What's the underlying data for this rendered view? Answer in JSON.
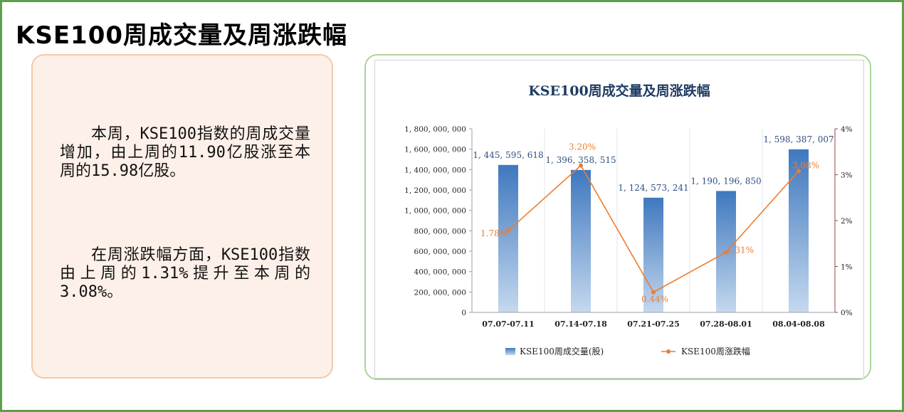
{
  "page": {
    "title": "KSE100周成交量及周涨跌幅"
  },
  "text_card": {
    "paragraph1": "本周，KSE100指数的周成交量增加，由上周的11.90亿股涨至本周的15.98亿股。",
    "paragraph2": "在周涨跌幅方面，KSE100指数由上周的1.31%提升至本周的3.08%。"
  },
  "colors": {
    "frame": "#5aa04a",
    "bar_top": "#3f78bf",
    "bar_bottom": "#c5d8ee",
    "line": "#ed7d31",
    "bar_label": "#2f4f7f",
    "right_axis": "#a0413c"
  },
  "chart_data": {
    "type": "bar",
    "title": "KSE100周成交量及周涨跌幅",
    "categories": [
      "07.07-07.11",
      "07.14-07.18",
      "07.21-07.25",
      "07.28-08.01",
      "08.04-08.08"
    ],
    "series": [
      {
        "name": "KSE100周成交量(股)",
        "type": "bar",
        "axis": "left",
        "values": [
          1445595618,
          1396358515,
          1124573241,
          1190196850,
          1598387007
        ],
        "labels": [
          "1, 445, 595, 618",
          "1, 396, 358, 515",
          "1, 124, 573, 241",
          "1, 190, 196, 850",
          "1, 598, 387, 007"
        ]
      },
      {
        "name": "KSE100周涨跌幅",
        "type": "line",
        "axis": "right",
        "values": [
          1.78,
          3.2,
          0.44,
          1.31,
          3.08
        ],
        "labels": [
          "1.78%",
          "3.20%",
          "0.44%",
          "1.31%",
          "3.08%"
        ]
      }
    ],
    "left_axis": {
      "ylim": [
        0,
        1800000000
      ],
      "ticks": [
        0,
        200000000,
        400000000,
        600000000,
        800000000,
        1000000000,
        1200000000,
        1400000000,
        1600000000,
        1800000000
      ],
      "tick_labels": [
        "0",
        "200, 000, 000",
        "400, 000, 000",
        "600, 000, 000",
        "800, 000, 000",
        "1, 000, 000, 000",
        "1, 200, 000, 000",
        "1, 400, 000, 000",
        "1, 600, 000, 000",
        "1, 800, 000, 000"
      ]
    },
    "right_axis": {
      "ylim": [
        0,
        4
      ],
      "ticks": [
        0,
        1,
        2,
        3,
        4
      ],
      "tick_labels": [
        "0%",
        "1%",
        "2%",
        "3%",
        "4%"
      ]
    },
    "grid": "vertical",
    "legend": "bottom"
  }
}
